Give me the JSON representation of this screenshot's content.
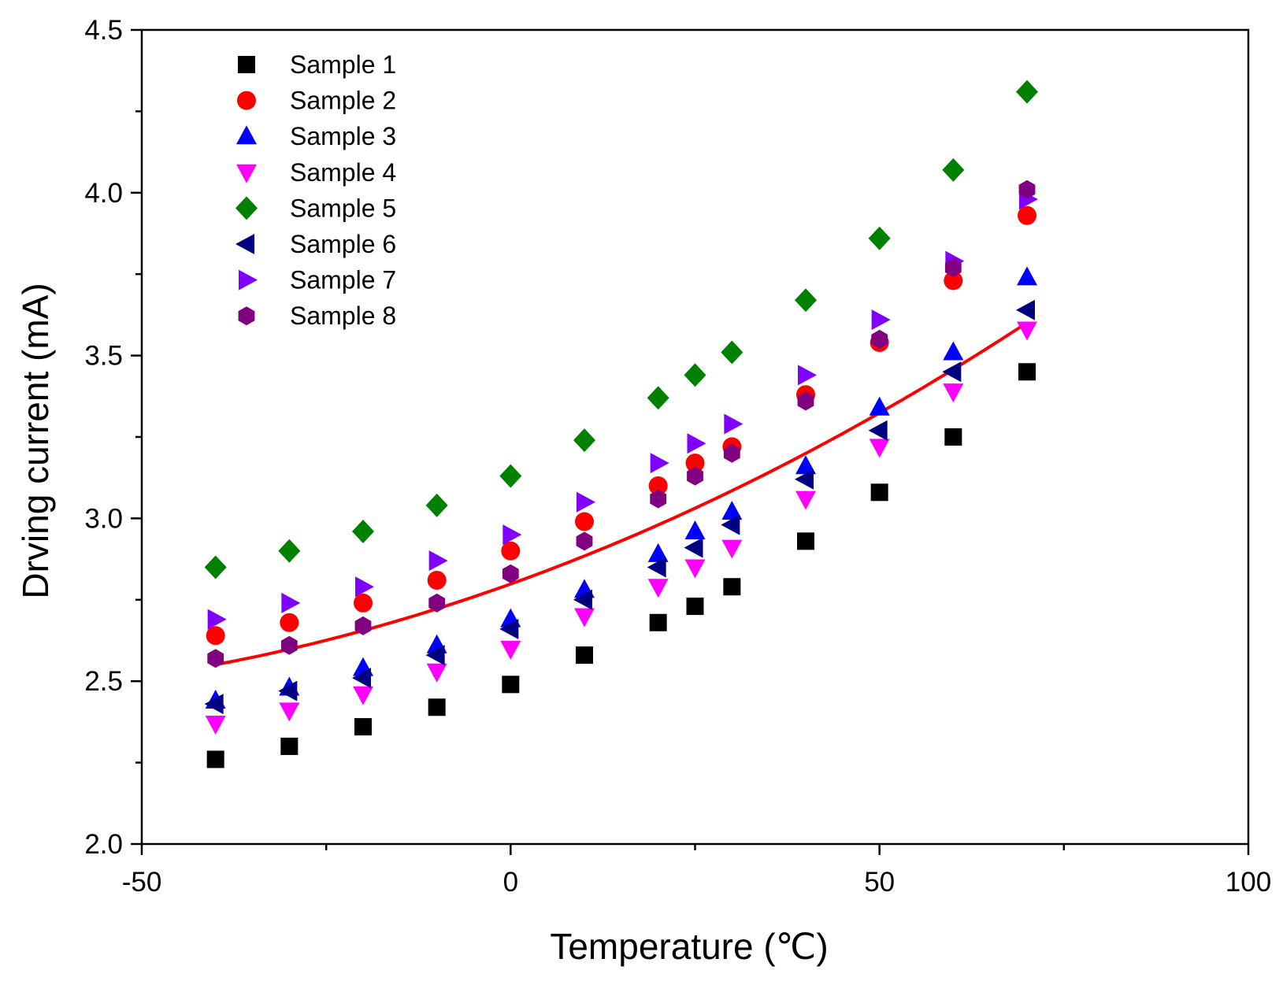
{
  "chart_data": {
    "type": "scatter",
    "title": "",
    "xlabel": "Temperature (℃)",
    "ylabel": "Drving current (mA)",
    "xlim": [
      -50,
      100
    ],
    "ylim": [
      2.0,
      4.5
    ],
    "x_ticks": [
      -50,
      0,
      50,
      100
    ],
    "x_tick_labels": [
      "-50",
      "0",
      "50",
      "100"
    ],
    "y_ticks": [
      2.0,
      2.5,
      3.0,
      3.5,
      4.0,
      4.5
    ],
    "y_tick_labels": [
      "2.0",
      "2.5",
      "3.0",
      "3.5",
      "4.0",
      "4.5"
    ],
    "grid": false,
    "legend_position": "top-left",
    "x": [
      -40,
      -30,
      -20,
      -10,
      0,
      10,
      20,
      25,
      30,
      40,
      50,
      60,
      70
    ],
    "series": [
      {
        "name": "Sample 1",
        "marker": "square",
        "color": "#000000",
        "values": [
          2.26,
          2.3,
          2.36,
          2.42,
          2.49,
          2.58,
          2.68,
          2.73,
          2.79,
          2.93,
          3.08,
          3.25,
          3.45
        ]
      },
      {
        "name": "Sample 2",
        "marker": "circle",
        "color": "#ff0000",
        "values": [
          2.64,
          2.68,
          2.74,
          2.81,
          2.9,
          2.99,
          3.1,
          3.17,
          3.22,
          3.38,
          3.54,
          3.73,
          3.93
        ]
      },
      {
        "name": "Sample 3",
        "marker": "triangle-up",
        "color": "#0000ff",
        "values": [
          2.44,
          2.48,
          2.54,
          2.61,
          2.69,
          2.78,
          2.89,
          2.96,
          3.02,
          3.16,
          3.34,
          3.51,
          3.74
        ]
      },
      {
        "name": "Sample 4",
        "marker": "triangle-down",
        "color": "#ff00ff",
        "values": [
          2.37,
          2.41,
          2.46,
          2.53,
          2.6,
          2.7,
          2.79,
          2.85,
          2.91,
          3.06,
          3.22,
          3.39,
          3.58
        ]
      },
      {
        "name": "Sample 5",
        "marker": "diamond",
        "color": "#008000",
        "values": [
          2.85,
          2.9,
          2.96,
          3.04,
          3.13,
          3.24,
          3.37,
          3.44,
          3.51,
          3.67,
          3.86,
          4.07,
          4.31
        ]
      },
      {
        "name": "Sample 6",
        "marker": "triangle-left",
        "color": "#000080",
        "values": [
          2.43,
          2.47,
          2.51,
          2.58,
          2.66,
          2.75,
          2.85,
          2.91,
          2.98,
          3.12,
          3.27,
          3.45,
          3.64
        ]
      },
      {
        "name": "Sample 7",
        "marker": "triangle-right",
        "color": "#8000ff",
        "values": [
          2.69,
          2.74,
          2.79,
          2.87,
          2.95,
          3.05,
          3.17,
          3.23,
          3.29,
          3.44,
          3.61,
          3.79,
          3.98
        ]
      },
      {
        "name": "Sample 8",
        "marker": "hexagon",
        "color": "#800080",
        "values": [
          2.57,
          2.61,
          2.67,
          2.74,
          2.83,
          2.93,
          3.06,
          3.13,
          3.2,
          3.36,
          3.55,
          3.77,
          4.01
        ]
      }
    ],
    "fit_curve": {
      "type": "quadratic",
      "color": "#ff0000",
      "x_range": [
        -40,
        70
      ],
      "coefficients": {
        "a": 4.79e-05,
        "b": 0.00811,
        "c": 2.7985
      }
    }
  }
}
